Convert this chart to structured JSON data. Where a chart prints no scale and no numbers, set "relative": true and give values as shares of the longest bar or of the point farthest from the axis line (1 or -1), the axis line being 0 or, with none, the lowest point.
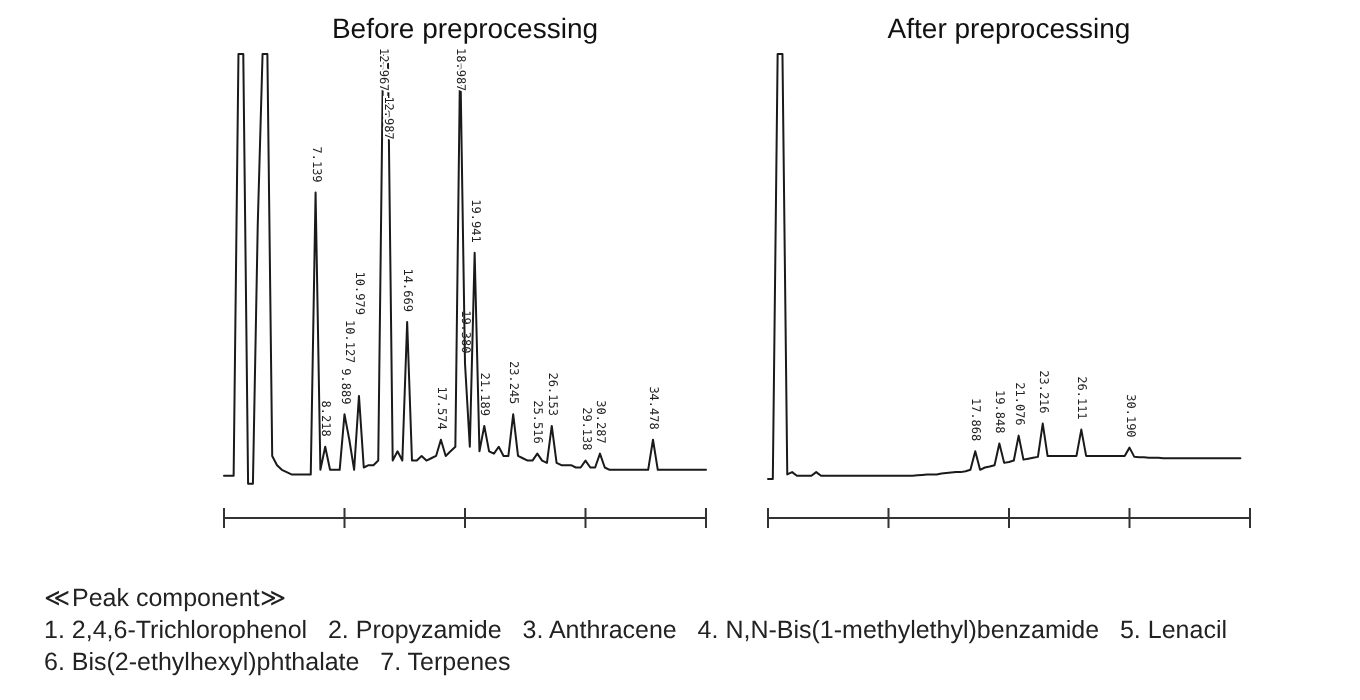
{
  "chart_data": [
    {
      "type": "line",
      "title": "Before preprocessing",
      "relative": true,
      "categories": [
        null,
        null,
        null,
        null,
        null,
        null,
        null,
        null,
        null,
        null,
        null,
        null,
        null,
        null,
        null,
        null,
        null,
        null,
        null,
        "7.139",
        null,
        "8.218",
        null,
        null,
        null,
        "9.889",
        "10.127",
        null,
        "10.979",
        null,
        null,
        null,
        null,
        "12.967",
        "12.987",
        null,
        null,
        null,
        "14.669",
        null,
        null,
        null,
        null,
        null,
        null,
        "17.574",
        null,
        null,
        null,
        "18.987",
        "19.380",
        null,
        "19.941",
        null,
        "21.189",
        null,
        null,
        null,
        null,
        null,
        "23.245",
        null,
        null,
        null,
        null,
        "25.516",
        null,
        null,
        "26.153",
        null,
        null,
        null,
        null,
        null,
        null,
        "29.138",
        null,
        null,
        "30.287",
        null,
        null,
        null,
        null,
        null,
        null,
        null,
        null,
        null,
        null,
        "34.478",
        null,
        null,
        null,
        null,
        null,
        null,
        null,
        null,
        null,
        null,
        null
      ],
      "series": [
        {
          "color": "#1a1a1a",
          "values": [
            0.087,
            0.087,
            0.087,
            1.0,
            1.0,
            0.07,
            0.07,
            0.63,
            1.0,
            1.0,
            0.13,
            0.11,
            0.1,
            0.095,
            0.09,
            0.09,
            0.09,
            0.09,
            0.09,
            0.7,
            0.1,
            0.15,
            0.1,
            0.1,
            0.1,
            0.22,
            0.165,
            0.1,
            0.26,
            0.105,
            0.11,
            0.11,
            0.12,
            1.0,
            1.0,
            0.12,
            0.14,
            0.12,
            0.42,
            0.12,
            0.12,
            0.13,
            0.12,
            0.125,
            0.13,
            0.165,
            0.13,
            0.14,
            0.15,
            1.0,
            0.33,
            0.15,
            0.57,
            0.14,
            0.195,
            0.14,
            0.135,
            0.15,
            0.13,
            0.13,
            0.22,
            0.13,
            0.125,
            0.12,
            0.12,
            0.135,
            0.12,
            0.115,
            0.195,
            0.115,
            0.11,
            0.11,
            0.11,
            0.105,
            0.105,
            0.12,
            0.105,
            0.105,
            0.135,
            0.105,
            0.1,
            0.1,
            0.1,
            0.1,
            0.1,
            0.1,
            0.1,
            0.1,
            0.1,
            0.165,
            0.1,
            0.1,
            0.1,
            0.1,
            0.1,
            0.1,
            0.1,
            0.1,
            0.1,
            0.1,
            0.1
          ]
        }
      ],
      "annotations": [
        "≪Peak component≫",
        "1. 2,4,6-Trichlorophenol   2. Propyzamide   3. Anthracene   4. N,N-Bis(1-methylethyl)benzamide   5. Lenacil",
        "6. Bis(2-ethylhexyl)phthalate   7. Terpenes"
      ]
    },
    {
      "type": "line",
      "title": "After preprocessing",
      "relative": true,
      "categories": [
        null,
        null,
        null,
        null,
        null,
        null,
        null,
        null,
        null,
        null,
        null,
        null,
        null,
        null,
        null,
        null,
        null,
        null,
        null,
        null,
        null,
        null,
        null,
        null,
        null,
        null,
        null,
        null,
        null,
        null,
        null,
        null,
        null,
        null,
        null,
        null,
        null,
        null,
        null,
        null,
        null,
        null,
        null,
        "17.868",
        null,
        null,
        null,
        null,
        "19.848",
        null,
        null,
        null,
        "21.076",
        null,
        null,
        null,
        null,
        "23.216",
        null,
        null,
        null,
        null,
        null,
        null,
        null,
        "26.111",
        null,
        null,
        null,
        null,
        null,
        null,
        null,
        null,
        null,
        "30.190",
        null,
        null,
        null,
        null,
        null,
        null,
        null,
        null,
        null,
        null,
        null,
        null,
        null,
        null,
        null,
        null,
        null,
        null,
        null,
        null,
        null,
        null,
        null,
        null,
        null
      ],
      "series": [
        {
          "color": "#1a1a1a",
          "values": [
            0.08,
            0.08,
            1.0,
            1.0,
            0.09,
            0.095,
            0.087,
            0.087,
            0.087,
            0.087,
            0.095,
            0.087,
            0.087,
            0.087,
            0.087,
            0.087,
            0.087,
            0.087,
            0.087,
            0.087,
            0.087,
            0.087,
            0.087,
            0.087,
            0.087,
            0.087,
            0.087,
            0.087,
            0.087,
            0.087,
            0.087,
            0.088,
            0.089,
            0.09,
            0.09,
            0.09,
            0.092,
            0.093,
            0.094,
            0.095,
            0.095,
            0.097,
            0.1,
            0.14,
            0.1,
            0.105,
            0.107,
            0.11,
            0.157,
            0.115,
            0.117,
            0.12,
            0.174,
            0.122,
            0.124,
            0.126,
            0.128,
            0.2,
            0.13,
            0.13,
            0.13,
            0.13,
            0.13,
            0.13,
            0.13,
            0.187,
            0.13,
            0.13,
            0.13,
            0.13,
            0.13,
            0.13,
            0.13,
            0.13,
            0.13,
            0.148,
            0.128,
            0.127,
            0.127,
            0.126,
            0.126,
            0.126,
            0.125,
            0.125,
            0.125,
            0.125,
            0.125,
            0.125,
            0.125,
            0.125,
            0.125,
            0.125,
            0.125,
            0.125,
            0.125,
            0.125,
            0.125,
            0.125,
            0.125,
            null,
            null
          ]
        }
      ]
    }
  ]
}
